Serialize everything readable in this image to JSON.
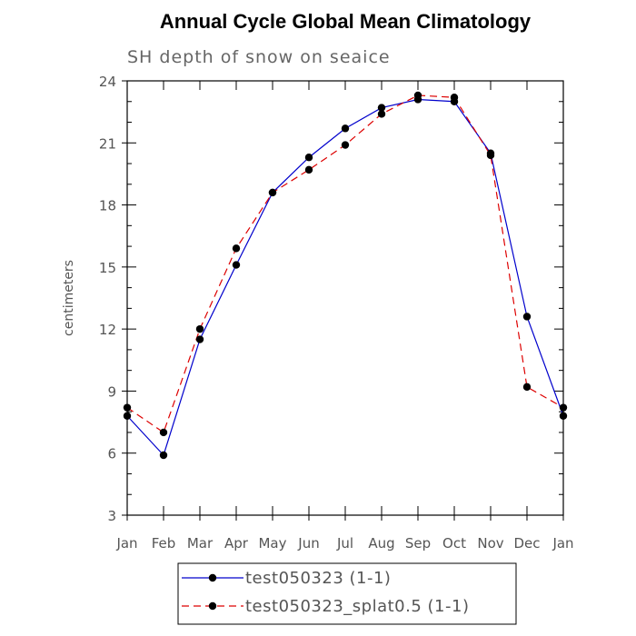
{
  "chart_data": {
    "type": "line",
    "title": "Annual Cycle Global Mean Climatology",
    "subtitle": "SH depth of snow on seaice",
    "xlabel": "",
    "ylabel": "centimeters",
    "categories": [
      "Jan",
      "Feb",
      "Mar",
      "Apr",
      "May",
      "Jun",
      "Jul",
      "Aug",
      "Sep",
      "Oct",
      "Nov",
      "Dec",
      "Jan"
    ],
    "ylim": [
      3,
      24
    ],
    "yticks": [
      3,
      6,
      9,
      12,
      15,
      18,
      21,
      24
    ],
    "series": [
      {
        "name": "test050323 (1-1)",
        "color": "#0000cc",
        "dash": "solid",
        "values": [
          7.8,
          5.9,
          11.5,
          15.1,
          18.6,
          20.3,
          21.7,
          22.7,
          23.1,
          23.0,
          20.5,
          12.6,
          7.8
        ]
      },
      {
        "name": "test050323_splat0.5 (1-1)",
        "color": "#dd0000",
        "dash": "dashed",
        "values": [
          8.2,
          7.0,
          12.0,
          15.9,
          18.6,
          19.7,
          20.9,
          22.4,
          23.3,
          23.2,
          20.4,
          9.2,
          8.2
        ]
      }
    ],
    "legend_position": "bottom"
  }
}
